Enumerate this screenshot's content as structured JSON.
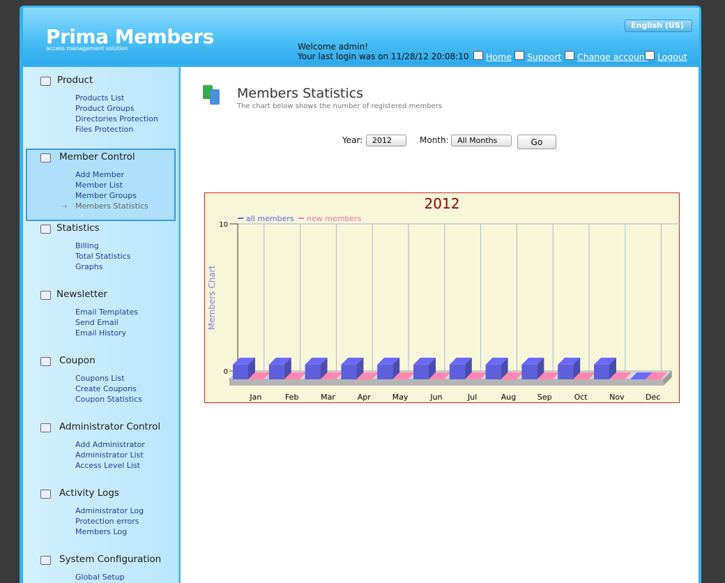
{
  "header": {
    "logo": "Prima Members",
    "tagline": "access management solution",
    "language": "English (US)",
    "welcome": "Welcome admin!",
    "last_login": "Your last login was on 11/28/12 20:08:10",
    "nav": [
      "Home",
      "Support",
      "Change account",
      "Logout"
    ]
  },
  "sidebar": {
    "sections": [
      {
        "title": "Product",
        "items": [
          "Products List",
          "Product Groups",
          "Directories Protection",
          "Files Protection"
        ]
      },
      {
        "title": "Member Control",
        "items": [
          "Add Member",
          "Member List",
          "Member Groups",
          "Members Statistics"
        ]
      },
      {
        "title": "Statistics",
        "items": [
          "Billing",
          "Total Statistics",
          "Graphs"
        ]
      },
      {
        "title": "Newsletter",
        "items": [
          "Email Templates",
          "Send Email",
          "Email History"
        ]
      },
      {
        "title": "Coupon",
        "items": [
          "Coupons List",
          "Create Coupons",
          "Coupon Statistics"
        ]
      },
      {
        "title": "Administrator Control",
        "items": [
          "Add Administrator",
          "Administrator List",
          "Access Level List"
        ]
      },
      {
        "title": "Activity Logs",
        "items": [
          "Administrator Log",
          "Protection errors",
          "Members Log"
        ]
      },
      {
        "title": "System Configuration",
        "items": [
          "Global Setup"
        ]
      }
    ]
  },
  "page": {
    "title": "Members Statistics",
    "subtitle": "The chart below shows the number of registered members",
    "year_label": "Year:",
    "year": "2012",
    "month_label": "Month:",
    "month": "All Months",
    "button": "Go"
  },
  "chart_data": {
    "type": "bar",
    "title": "2012",
    "y_label": "Members Chart",
    "categories": [
      "Jan",
      "Feb",
      "Mar",
      "Apr",
      "May",
      "Jun",
      "Jul",
      "Aug",
      "Sep",
      "Oct",
      "Nov",
      "Dec"
    ],
    "series": [
      {
        "name": "all members",
        "color": "#5f5fdc",
        "values": [
          1,
          1,
          1,
          1,
          1,
          1,
          1,
          1,
          1,
          1,
          1,
          0
        ]
      },
      {
        "name": "new members",
        "color": "#e4789e",
        "values": [
          0,
          0,
          0,
          0,
          0,
          0,
          0,
          0,
          0,
          0,
          0,
          0
        ]
      }
    ],
    "ylim": [
      0,
      10
    ],
    "yticks": [
      0,
      10
    ]
  }
}
